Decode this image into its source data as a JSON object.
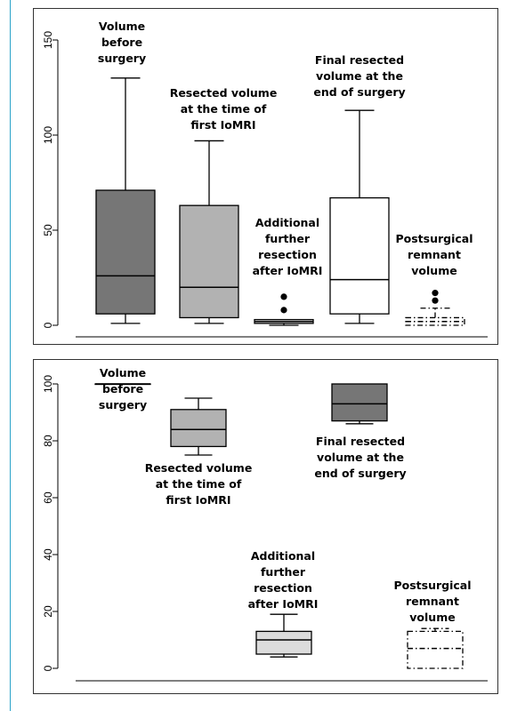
{
  "chart_data": [
    {
      "type": "box",
      "title": "",
      "xlabel": "",
      "ylabel": "",
      "ylim": [
        0,
        150
      ],
      "yticks": [
        0,
        50,
        100,
        150
      ],
      "grid": false,
      "legend": "none",
      "series": [
        {
          "name": "Volume before surgery",
          "label_lines": [
            "Volume",
            "before",
            "surgery"
          ],
          "min": 1,
          "q1": 6,
          "median": 26,
          "q3": 71,
          "max": 130,
          "outliers": [],
          "fill": "#767676",
          "line_style": "solid"
        },
        {
          "name": "Resected volume at the time of first IoMRI",
          "label_lines": [
            "Resected volume",
            "at the time of",
            "first IoMRI"
          ],
          "min": 1,
          "q1": 4,
          "median": 20,
          "q3": 63,
          "max": 97,
          "outliers": [],
          "fill": "#b2b2b2",
          "line_style": "solid"
        },
        {
          "name": "Additional further resection after IoMRI",
          "label_lines": [
            "Additional",
            "further",
            "resection",
            "after IoMRI"
          ],
          "min": 0,
          "q1": 1,
          "median": 2,
          "q3": 3,
          "max": 3,
          "outliers": [
            8,
            15
          ],
          "fill": "#dcdcdc",
          "line_style": "solid"
        },
        {
          "name": "Final resected volume at the end of surgery",
          "label_lines": [
            "Final resected",
            "volume at the",
            "end of surgery"
          ],
          "min": 1,
          "q1": 6,
          "median": 24,
          "q3": 67,
          "max": 113,
          "outliers": [],
          "fill": "#ffffff",
          "line_style": "solid"
        },
        {
          "name": "Postsurgical remnant volume",
          "label_lines": [
            "Postsurgical",
            "remnant",
            "volume"
          ],
          "min": 0,
          "q1": 0,
          "median": 2,
          "q3": 4,
          "max": 9,
          "outliers": [
            13,
            17
          ],
          "fill": "#ffffff",
          "line_style": "dashdot"
        }
      ]
    },
    {
      "type": "box",
      "title": "",
      "xlabel": "",
      "ylabel": "",
      "ylim": [
        0,
        100
      ],
      "yticks": [
        0,
        20,
        40,
        60,
        80,
        100
      ],
      "grid": false,
      "legend": "none",
      "series": [
        {
          "name": "Volume before surgery",
          "label_lines": [
            "Volume",
            "before",
            "surgery"
          ],
          "min": 100,
          "q1": 100,
          "median": 100,
          "q3": 100,
          "max": 100,
          "outliers": [],
          "fill": "#767676",
          "line_style": "solid"
        },
        {
          "name": "Resected volume at the time of first IoMRI",
          "label_lines": [
            "Resected volume",
            "at the time of",
            "first IoMRI"
          ],
          "min": 75,
          "q1": 78,
          "median": 84,
          "q3": 91,
          "max": 95,
          "outliers": [],
          "fill": "#b2b2b2",
          "line_style": "solid"
        },
        {
          "name": "Additional further resection after IoMRI",
          "label_lines": [
            "Additional",
            "further",
            "resection",
            "after IoMRI"
          ],
          "min": 4,
          "q1": 5,
          "median": 10,
          "q3": 13,
          "max": 19,
          "outliers": [],
          "fill": "#dcdcdc",
          "line_style": "solid"
        },
        {
          "name": "Final resected volume at the end of surgery",
          "label_lines": [
            "Final resected",
            "volume at the",
            "end of surgery"
          ],
          "min": 86,
          "q1": 87,
          "median": 93,
          "q3": 100,
          "max": 100,
          "outliers": [],
          "fill": "#767676",
          "line_style": "solid"
        },
        {
          "name": "Postsurgical remnant volume",
          "label_lines": [
            "Postsurgical",
            "remnant",
            "volume"
          ],
          "min": 0,
          "q1": 0,
          "median": 7,
          "q3": 13,
          "max": 14,
          "outliers": [],
          "fill": "#ffffff",
          "line_style": "dashdot"
        }
      ]
    }
  ]
}
